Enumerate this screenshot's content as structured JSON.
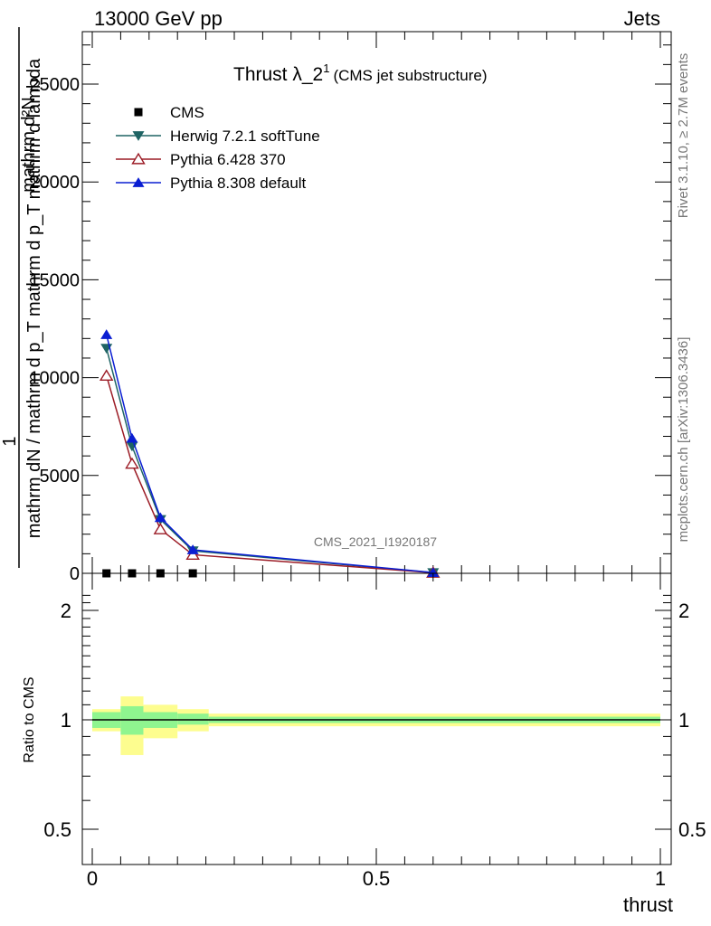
{
  "header": {
    "left": "13000 GeV pp",
    "right": "Jets"
  },
  "side": {
    "rivet": "Rivet 3.1.10, ≥ 2.7M events",
    "mcplots": "mcplots.cern.ch [arXiv:1306.3436]"
  },
  "watermark": "CMS_2021_I1920187",
  "chart_data": [
    {
      "type": "line",
      "title_main": "Thrust λ_2",
      "title_sup": "1",
      "title_sub": "(CMS jet substructure)",
      "ylabel_top": "1",
      "ylabel_numerator": "mathrm d²N",
      "ylabel_denominator": "mathrm dN / mathrm d p_T mathrm d p_T mathrm d lambda",
      "xlim": [
        -0.02,
        1.02
      ],
      "ylim": [
        0,
        27500
      ],
      "y_ticks": [
        0,
        5000,
        10000,
        15000,
        20000,
        25000
      ],
      "y_tick_labels": [
        "0",
        "5000",
        "10000",
        "15000",
        "20000",
        "25000"
      ],
      "legend_position": "top-left",
      "series": [
        {
          "name": "CMS",
          "color": "#000000",
          "marker": "square",
          "x": [
            0.025,
            0.07,
            0.12,
            0.177,
            0.6
          ],
          "y": [
            0,
            0,
            0,
            0,
            0
          ]
        },
        {
          "name": "Herwig 7.2.1 softTune",
          "color": "#1f6464",
          "marker": "triangle-down",
          "x": [
            0.025,
            0.07,
            0.12,
            0.177,
            0.6
          ],
          "y": [
            11500,
            6500,
            2750,
            1150,
            35
          ]
        },
        {
          "name": "Pythia 6.428 370",
          "color": "#9b1b25",
          "marker": "triangle-up-open",
          "x": [
            0.025,
            0.07,
            0.12,
            0.177,
            0.6
          ],
          "y": [
            10100,
            5600,
            2250,
            950,
            30
          ]
        },
        {
          "name": "Pythia 8.308 default",
          "color": "#0a1ed2",
          "marker": "triangle-up",
          "x": [
            0.025,
            0.07,
            0.12,
            0.177,
            0.6
          ],
          "y": [
            12200,
            6900,
            2850,
            1200,
            40
          ]
        }
      ]
    },
    {
      "type": "area",
      "ylabel": "Ratio to CMS",
      "xlabel": "thrust",
      "xlim": [
        -0.02,
        1.02
      ],
      "ylim": [
        0.4,
        2.3
      ],
      "x_ticks": [
        0,
        0.5,
        1
      ],
      "x_tick_labels": [
        "0",
        "0.5",
        "1"
      ],
      "y_ticks": [
        0.5,
        1,
        2
      ],
      "y_tick_labels": [
        "0.5",
        "1",
        "2"
      ],
      "reference_line": 1,
      "band_colors": {
        "stat": "#8ff58f",
        "total": "#fdfd8f"
      },
      "bins": [
        {
          "x0": 0.0,
          "x1": 0.05,
          "stat": [
            0.95,
            1.05
          ],
          "total": [
            0.93,
            1.07
          ]
        },
        {
          "x0": 0.05,
          "x1": 0.09,
          "stat": [
            0.91,
            1.09
          ],
          "total": [
            0.8,
            1.16
          ]
        },
        {
          "x0": 0.09,
          "x1": 0.15,
          "stat": [
            0.95,
            1.05
          ],
          "total": [
            0.89,
            1.1
          ]
        },
        {
          "x0": 0.15,
          "x1": 0.205,
          "stat": [
            0.97,
            1.04
          ],
          "total": [
            0.93,
            1.07
          ]
        },
        {
          "x0": 0.205,
          "x1": 1.0,
          "stat": [
            0.98,
            1.02
          ],
          "total": [
            0.96,
            1.04
          ]
        }
      ]
    }
  ]
}
